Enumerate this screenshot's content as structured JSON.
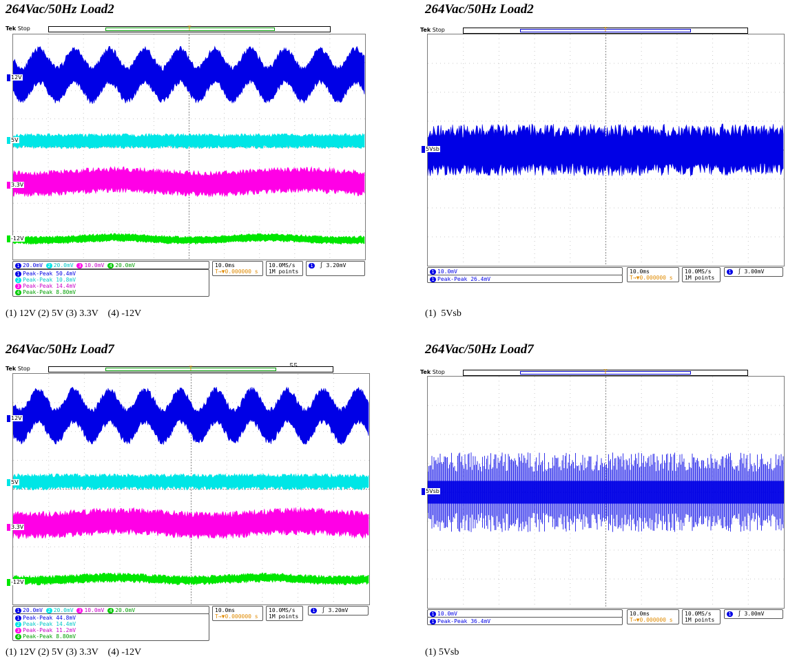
{
  "colors": {
    "ch1": "#0000e6",
    "ch2": "#00e6e6",
    "ch3": "#ff00e6",
    "ch4": "#00e600",
    "trigger": "#e09a00",
    "grid": "#c8c8c8"
  },
  "panels": [
    {
      "title": "264Vac/50Hz Load2",
      "caption": "(1) 12V (2) 5V (3) 3.3V    (4) -12V",
      "tek": "Tek",
      "state": "Stop",
      "markers": [
        "12V",
        "5V",
        "3.3V",
        "-12V"
      ],
      "scale_rows": [
        "20.0mV",
        "20.0mV",
        "10.0mV",
        "20.0mV"
      ],
      "measurements": [
        {
          "label": "Peak-Peak",
          "value": "50.4mV"
        },
        {
          "label": "Peak-Peak",
          "value": "10.8mV"
        },
        {
          "label": "Peak-Peak",
          "value": "14.4mV"
        },
        {
          "label": "Peak-Peak",
          "value": "8.80mV"
        }
      ],
      "timebase": "10.0ms",
      "delay": "0.000000 s",
      "sample_rate": "10.0MS/s",
      "record": "1M points",
      "trigger_level": "3.20mV"
    },
    {
      "title": "264Vac/50Hz Load2",
      "caption": "(1)  5Vsb",
      "tek": "Tek",
      "state": "Stop",
      "markers": [
        "5Vsb"
      ],
      "scale_rows": [
        "10.0mV"
      ],
      "measurements": [
        {
          "label": "Peak-Peak",
          "value": "26.4mV"
        }
      ],
      "timebase": "10.0ms",
      "delay": "0.000000 s",
      "sample_rate": "10.0MS/s",
      "record": "1M points",
      "trigger_level": "3.00mV"
    },
    {
      "title": "264Vac/50Hz Load7",
      "caption": "(1) 12V (2) 5V (3) 3.3V    (4) -12V",
      "tek": "Tek",
      "state": "Stop",
      "markers": [
        "12V",
        "5V",
        "3.3V",
        "-12V"
      ],
      "scale_rows": [
        "20.0mV",
        "20.0mV",
        "10.0mV",
        "20.0mV"
      ],
      "measurements": [
        {
          "label": "Peak-Peak",
          "value": "44.8mV"
        },
        {
          "label": "Peak-Peak",
          "value": "14.4mV"
        },
        {
          "label": "Peak-Peak",
          "value": "11.2mV"
        },
        {
          "label": "Peak-Peak",
          "value": "8.80mV"
        }
      ],
      "timebase": "10.0ms",
      "delay": "0.000000 s",
      "sample_rate": "10.0MS/s",
      "record": "1M points",
      "trigger_level": "3.20mV"
    },
    {
      "title": "264Vac/50Hz Load7",
      "caption": "(1) 5Vsb",
      "tek": "Tek",
      "state": "Stop",
      "markers": [
        "5Vsb"
      ],
      "scale_rows": [
        "10.0mV"
      ],
      "measurements": [
        {
          "label": "Peak-Peak",
          "value": "36.4mV"
        }
      ],
      "timebase": "10.0ms",
      "delay": "0.000000 s",
      "sample_rate": "10.0MS/s",
      "record": "1M points",
      "trigger_level": "3.00mV"
    }
  ],
  "stray_text": "55"
}
